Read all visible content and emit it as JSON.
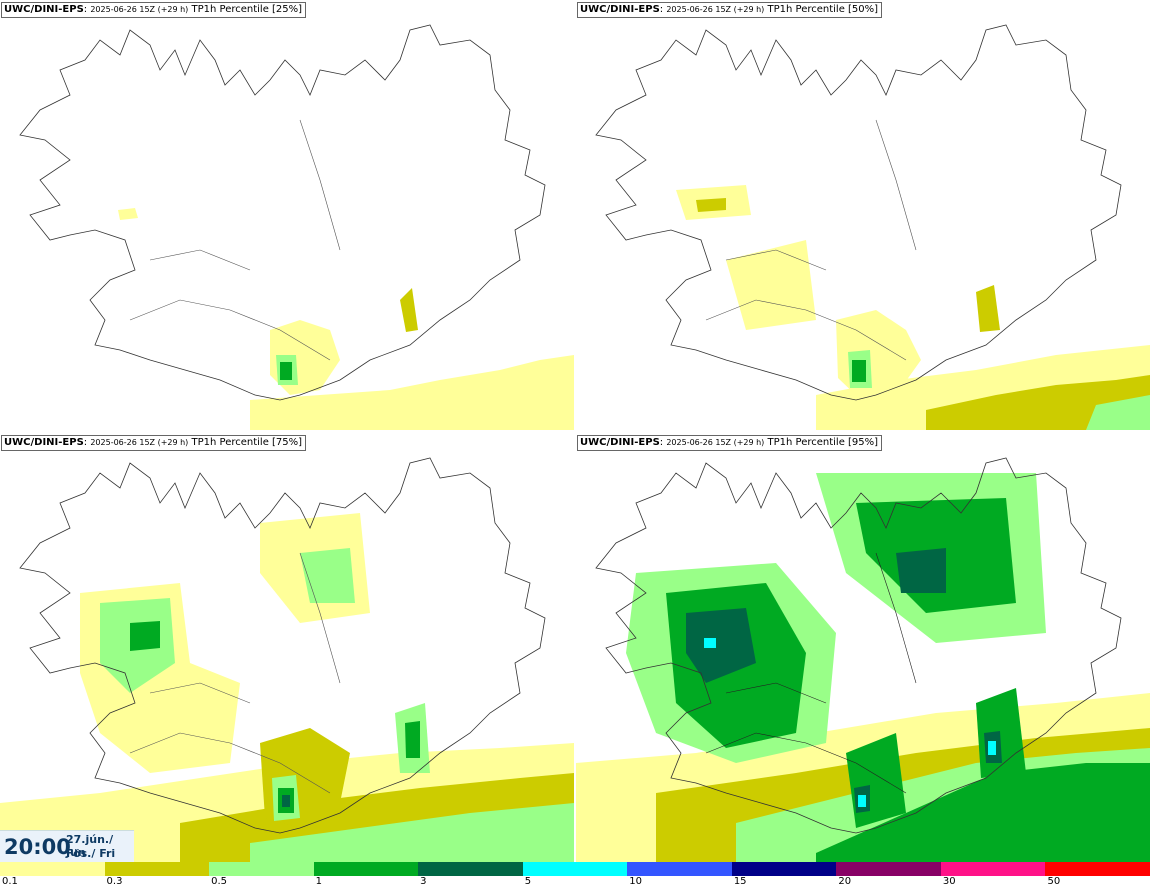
{
  "panels": [
    {
      "model": "UWC/DINI-EPS",
      "run": "2025-06-26 15Z (+29 h)",
      "title": "TP1h Percentile [25%]"
    },
    {
      "model": "UWC/DINI-EPS",
      "run": "2025-06-26 15Z (+29 h)",
      "title": "TP1h Percentile [50%]"
    },
    {
      "model": "UWC/DINI-EPS",
      "run": "2025-06-26 15Z (+29 h)",
      "title": "TP1h Percentile [75%]"
    },
    {
      "model": "UWC/DINI-EPS",
      "run": "2025-06-26 15Z (+29 h)",
      "title": "TP1h Percentile [95%]"
    }
  ],
  "valid_time": {
    "hour": "20:00",
    "date": "27.jún./ Jun",
    "day": "Fös./ Fri"
  },
  "legend": {
    "colors": [
      "#ffff99",
      "#cccc00",
      "#99ff88",
      "#00aa22",
      "#006644",
      "#00ffff",
      "#3355ff",
      "#000088",
      "#880066",
      "#ff1188",
      "#ff0000"
    ],
    "ticks": [
      "0.1",
      "0.3",
      "0.5",
      "1",
      "3",
      "5",
      "10",
      "15",
      "20",
      "30",
      "50"
    ]
  }
}
